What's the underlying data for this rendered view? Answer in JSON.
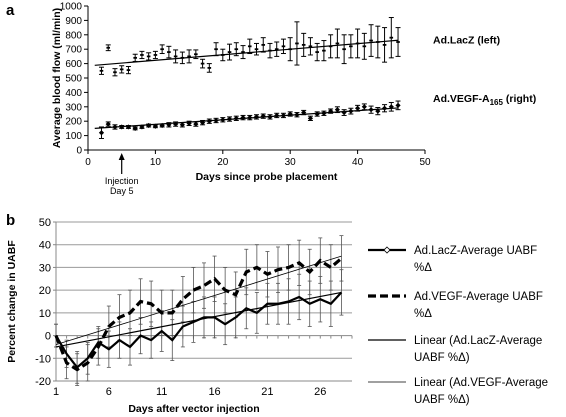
{
  "chart_data": [
    {
      "panel_label": "a",
      "type": "scatter",
      "xlabel": "Days since probe placement",
      "ylabel": "Average blood flow (ml/min)",
      "xlim": [
        0,
        50
      ],
      "ylim": [
        0,
        1000
      ],
      "xticks": [
        "0",
        "10",
        "20",
        "30",
        "40",
        "50"
      ],
      "yticks": [
        "0",
        "100",
        "200",
        "300",
        "400",
        "500",
        "600",
        "700",
        "800",
        "900",
        "1000"
      ],
      "annotation": {
        "text_line1": "Injection",
        "text_line2": "Day 5",
        "x": 5
      },
      "trendlines": [
        {
          "series": "Ad.LacZ (left)",
          "x": [
            1,
            46
          ],
          "y": [
            588,
            762
          ]
        },
        {
          "series": "Ad.VEGF-A165 (right)",
          "x": [
            1,
            46
          ],
          "y": [
            150,
            292
          ]
        }
      ],
      "series": [
        {
          "name": "Ad.LacZ (left)",
          "label_main": "Ad.LacZ (left)",
          "label_sub": "",
          "x": [
            2,
            3,
            4,
            5,
            6,
            7,
            8,
            9,
            10,
            11,
            12,
            13,
            14,
            15,
            16,
            17,
            18,
            19,
            20,
            21,
            22,
            23,
            24,
            25,
            26,
            27,
            28,
            29,
            30,
            31,
            32,
            33,
            34,
            35,
            36,
            37,
            38,
            39,
            40,
            41,
            42,
            43,
            44,
            45,
            46
          ],
          "y": [
            550,
            710,
            540,
            560,
            555,
            640,
            660,
            650,
            660,
            700,
            680,
            650,
            640,
            650,
            665,
            600,
            570,
            700,
            660,
            680,
            700,
            680,
            720,
            700,
            730,
            690,
            700,
            720,
            700,
            740,
            730,
            720,
            680,
            690,
            720,
            740,
            700,
            720,
            740,
            720,
            760,
            750,
            730,
            780,
            750
          ],
          "err": [
            25,
            20,
            25,
            25,
            25,
            25,
            25,
            25,
            25,
            30,
            40,
            45,
            40,
            45,
            30,
            30,
            30,
            45,
            40,
            55,
            45,
            45,
            50,
            40,
            50,
            50,
            50,
            50,
            80,
            150,
            80,
            60,
            60,
            70,
            80,
            100,
            100,
            80,
            100,
            90,
            110,
            110,
            120,
            140,
            100
          ]
        },
        {
          "name": "Ad.VEGF-A165 (right)",
          "label_main": "Ad.VEGF-A",
          "label_sub": "165",
          "label_suffix": " (right)",
          "x": [
            2,
            3,
            4,
            5,
            6,
            7,
            8,
            9,
            10,
            11,
            12,
            13,
            14,
            15,
            16,
            17,
            18,
            19,
            20,
            21,
            22,
            23,
            24,
            25,
            26,
            27,
            28,
            29,
            30,
            31,
            32,
            33,
            34,
            35,
            36,
            37,
            38,
            39,
            40,
            41,
            42,
            43,
            44,
            45,
            46
          ],
          "y": [
            120,
            180,
            160,
            160,
            160,
            150,
            160,
            170,
            165,
            170,
            175,
            180,
            175,
            185,
            180,
            190,
            200,
            205,
            210,
            215,
            220,
            225,
            225,
            230,
            235,
            230,
            240,
            240,
            250,
            245,
            260,
            220,
            250,
            255,
            270,
            280,
            260,
            270,
            290,
            300,
            280,
            270,
            290,
            300,
            310
          ],
          "err": [
            40,
            15,
            15,
            10,
            10,
            10,
            10,
            10,
            10,
            10,
            15,
            15,
            15,
            15,
            15,
            15,
            15,
            15,
            15,
            15,
            15,
            15,
            15,
            15,
            15,
            15,
            15,
            15,
            15,
            15,
            15,
            15,
            15,
            15,
            15,
            20,
            20,
            20,
            20,
            20,
            25,
            25,
            25,
            30,
            30
          ]
        }
      ]
    },
    {
      "panel_label": "b",
      "type": "line",
      "xlabel": "Days after vector injection",
      "ylabel": "Percent change in UABF",
      "xlim": [
        1,
        29
      ],
      "ylim": [
        -20,
        50
      ],
      "xticks": [
        "1",
        "6",
        "11",
        "16",
        "21",
        "26"
      ],
      "yticks": [
        "-20",
        "-10",
        "0",
        "10",
        "20",
        "30",
        "40",
        "50"
      ],
      "legend_position": "right",
      "legend": [
        {
          "line1": "Ad.LacZ-Average UABF",
          "line2": "%Δ"
        },
        {
          "line1": "Ad.VEGF-Average UABF",
          "line2": "%Δ"
        },
        {
          "line1": "Linear (Ad.LacZ-Average",
          "line2": "UABF %Δ)"
        },
        {
          "line1": "Linear (Ad.VEGF-Average",
          "line2": "UABF %Δ)"
        }
      ],
      "x": [
        1,
        2,
        3,
        4,
        5,
        6,
        7,
        8,
        9,
        10,
        11,
        12,
        13,
        14,
        15,
        16,
        17,
        18,
        19,
        20,
        21,
        22,
        23,
        24,
        25,
        26,
        27,
        28
      ],
      "series": [
        {
          "name": "Ad.LacZ-Average UABF %Δ",
          "values": [
            0,
            -8,
            -14,
            -10,
            -3,
            -6,
            -2,
            -5,
            0,
            -2,
            2,
            -2,
            4,
            6,
            8,
            8,
            5,
            8,
            12,
            10,
            14,
            14,
            15,
            17,
            14,
            16,
            14,
            19
          ],
          "err": [
            5,
            6,
            7,
            7,
            7,
            8,
            8,
            8,
            8,
            8,
            9,
            9,
            9,
            9,
            9,
            9,
            9,
            9,
            9,
            9,
            9,
            9,
            10,
            10,
            10,
            10,
            10,
            10
          ]
        },
        {
          "name": "Ad.VEGF-Average UABF %Δ",
          "values": [
            0,
            -12,
            -15,
            -12,
            -5,
            4,
            8,
            10,
            15,
            14,
            10,
            10,
            16,
            20,
            22,
            25,
            20,
            18,
            28,
            30,
            27,
            29,
            30,
            32,
            28,
            33,
            30,
            34
          ],
          "err": [
            5,
            7,
            7,
            8,
            8,
            9,
            10,
            10,
            10,
            10,
            10,
            10,
            10,
            10,
            10,
            10,
            10,
            10,
            10,
            10,
            10,
            10,
            10,
            10,
            10,
            10,
            10,
            10
          ]
        },
        {
          "name": "Linear (Ad.LacZ-Average UABF %Δ)",
          "trend": [
            -5,
            19
          ]
        },
        {
          "name": "Linear (Ad.VEGF-Average UABF %Δ)",
          "trend": [
            -4,
            35
          ]
        }
      ]
    }
  ]
}
